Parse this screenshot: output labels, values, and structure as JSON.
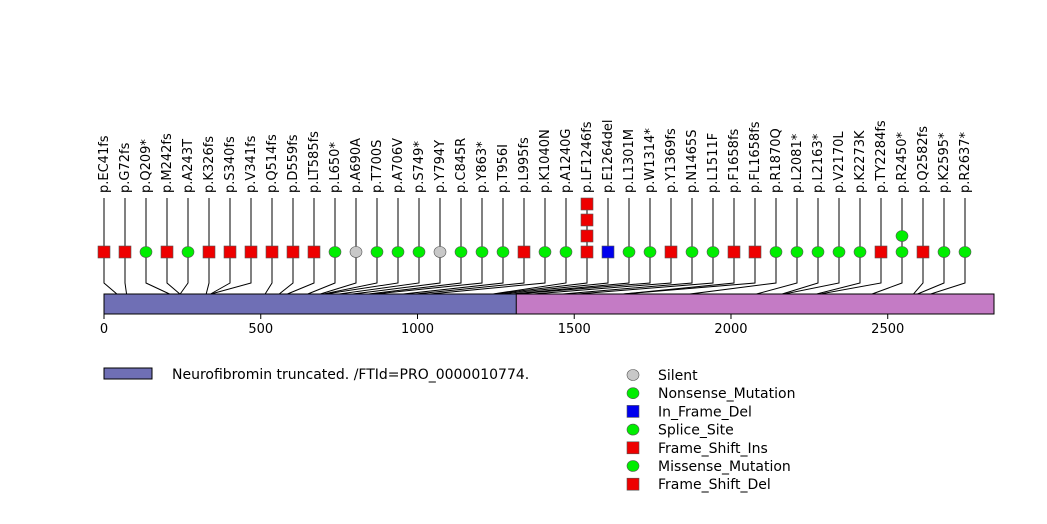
{
  "chart_data": {
    "type": "lollipop",
    "title": "",
    "protein_length": 2839,
    "axis": {
      "min": 0,
      "max": 2839,
      "ticks": [
        0,
        500,
        1000,
        1500,
        2000,
        2500
      ]
    },
    "domains": [
      {
        "name": "Neurofibromin truncated. /FTId=PRO_0000010774.",
        "start": 1,
        "end": 1316,
        "color": "#6f6fb5"
      },
      {
        "name": "",
        "start": 1316,
        "end": 2839,
        "color": "#c47bc5"
      }
    ],
    "mutations": [
      {
        "label": "p.EC41fs",
        "pos": 41,
        "type": "Frame_Shift_Del",
        "count": 1
      },
      {
        "label": "p.G72fs",
        "pos": 72,
        "type": "Frame_Shift_Del",
        "count": 1
      },
      {
        "label": "p.Q209*",
        "pos": 209,
        "type": "Nonsense_Mutation",
        "count": 1
      },
      {
        "label": "p.M242fs",
        "pos": 242,
        "type": "Frame_Shift_Del",
        "count": 1
      },
      {
        "label": "p.A243T",
        "pos": 243,
        "type": "Missense_Mutation",
        "count": 1
      },
      {
        "label": "p.K326fs",
        "pos": 326,
        "type": "Frame_Shift_Del",
        "count": 1
      },
      {
        "label": "p.S340fs",
        "pos": 340,
        "type": "Frame_Shift_Del",
        "count": 1
      },
      {
        "label": "p.V341fs",
        "pos": 341,
        "type": "Frame_Shift_Del",
        "count": 1
      },
      {
        "label": "p.Q514fs",
        "pos": 514,
        "type": "Frame_Shift_Del",
        "count": 1
      },
      {
        "label": "p.D559fs",
        "pos": 559,
        "type": "Frame_Shift_Del",
        "count": 1
      },
      {
        "label": "p.LT585fs",
        "pos": 585,
        "type": "Frame_Shift_Del",
        "count": 1
      },
      {
        "label": "p.L650*",
        "pos": 650,
        "type": "Nonsense_Mutation",
        "count": 1
      },
      {
        "label": "p.A690A",
        "pos": 690,
        "type": "Silent",
        "count": 1
      },
      {
        "label": "p.T700S",
        "pos": 700,
        "type": "Missense_Mutation",
        "count": 1
      },
      {
        "label": "p.A706V",
        "pos": 706,
        "type": "Missense_Mutation",
        "count": 1
      },
      {
        "label": "p.S749*",
        "pos": 749,
        "type": "Nonsense_Mutation",
        "count": 1
      },
      {
        "label": "p.Y794Y",
        "pos": 794,
        "type": "Silent",
        "count": 1
      },
      {
        "label": "p.C845R",
        "pos": 845,
        "type": "Missense_Mutation",
        "count": 1
      },
      {
        "label": "p.Y863*",
        "pos": 863,
        "type": "Nonsense_Mutation",
        "count": 1
      },
      {
        "label": "p.T956I",
        "pos": 956,
        "type": "Missense_Mutation",
        "count": 1
      },
      {
        "label": "p.L995fs",
        "pos": 995,
        "type": "Frame_Shift_Del",
        "count": 1
      },
      {
        "label": "p.K1040N",
        "pos": 1040,
        "type": "Missense_Mutation",
        "count": 1
      },
      {
        "label": "p.A1240G",
        "pos": 1240,
        "type": "Missense_Mutation",
        "count": 1
      },
      {
        "label": "p.LF1246fs",
        "pos": 1246,
        "type": "Frame_Shift_Del",
        "count": 4
      },
      {
        "label": "p.E1264del",
        "pos": 1264,
        "type": "In_Frame_Del",
        "count": 1
      },
      {
        "label": "p.L1301M",
        "pos": 1301,
        "type": "Missense_Mutation",
        "count": 1
      },
      {
        "label": "p.W1314*",
        "pos": 1314,
        "type": "Nonsense_Mutation",
        "count": 1
      },
      {
        "label": "p.Y1369fs",
        "pos": 1369,
        "type": "Frame_Shift_Del",
        "count": 1
      },
      {
        "label": "p.N1465S",
        "pos": 1465,
        "type": "Missense_Mutation",
        "count": 1
      },
      {
        "label": "p.L1511F",
        "pos": 1511,
        "type": "Missense_Mutation",
        "count": 1
      },
      {
        "label": "p.F1658fs",
        "pos": 1658,
        "type": "Frame_Shift_Del",
        "count": 1
      },
      {
        "label": "p.FL1658fs",
        "pos": 1658,
        "type": "Frame_Shift_Del",
        "count": 1
      },
      {
        "label": "p.R1870Q",
        "pos": 1870,
        "type": "Missense_Mutation",
        "count": 1
      },
      {
        "label": "p.L2081*",
        "pos": 2081,
        "type": "Nonsense_Mutation",
        "count": 1
      },
      {
        "label": "p.L2163*",
        "pos": 2163,
        "type": "Nonsense_Mutation",
        "count": 1
      },
      {
        "label": "p.V2170L",
        "pos": 2170,
        "type": "Missense_Mutation",
        "count": 1
      },
      {
        "label": "p.K2273K",
        "pos": 2273,
        "type": "Missense_Mutation",
        "count": 1
      },
      {
        "label": "p.TY2284fs",
        "pos": 2284,
        "type": "Frame_Shift_Del",
        "count": 1
      },
      {
        "label": "p.R2450*",
        "pos": 2450,
        "type": "Nonsense_Mutation",
        "count": 2
      },
      {
        "label": "p.Q2582fs",
        "pos": 2582,
        "type": "Frame_Shift_Del",
        "count": 1
      },
      {
        "label": "p.K2595*",
        "pos": 2595,
        "type": "Nonsense_Mutation",
        "count": 1
      },
      {
        "label": "p.R2637*",
        "pos": 2637,
        "type": "Nonsense_Mutation",
        "count": 1
      }
    ],
    "legend": {
      "placement": "bottom-right",
      "items": [
        {
          "label": "Silent",
          "shape": "circle",
          "color": "#c8c8c8"
        },
        {
          "label": "Nonsense_Mutation",
          "shape": "circle",
          "color": "#00ee00"
        },
        {
          "label": "In_Frame_Del",
          "shape": "square",
          "color": "#0000ee"
        },
        {
          "label": "Splice_Site",
          "shape": "circle",
          "color": "#00ee00"
        },
        {
          "label": "Frame_Shift_Ins",
          "shape": "square",
          "color": "#ee0000"
        },
        {
          "label": "Missense_Mutation",
          "shape": "circle",
          "color": "#00ee00"
        },
        {
          "label": "Frame_Shift_Del",
          "shape": "square",
          "color": "#ee0000"
        }
      ]
    },
    "domain_legend": {
      "label": "Neurofibromin truncated. /FTId=PRO_0000010774.",
      "color": "#6f6fb5"
    }
  }
}
